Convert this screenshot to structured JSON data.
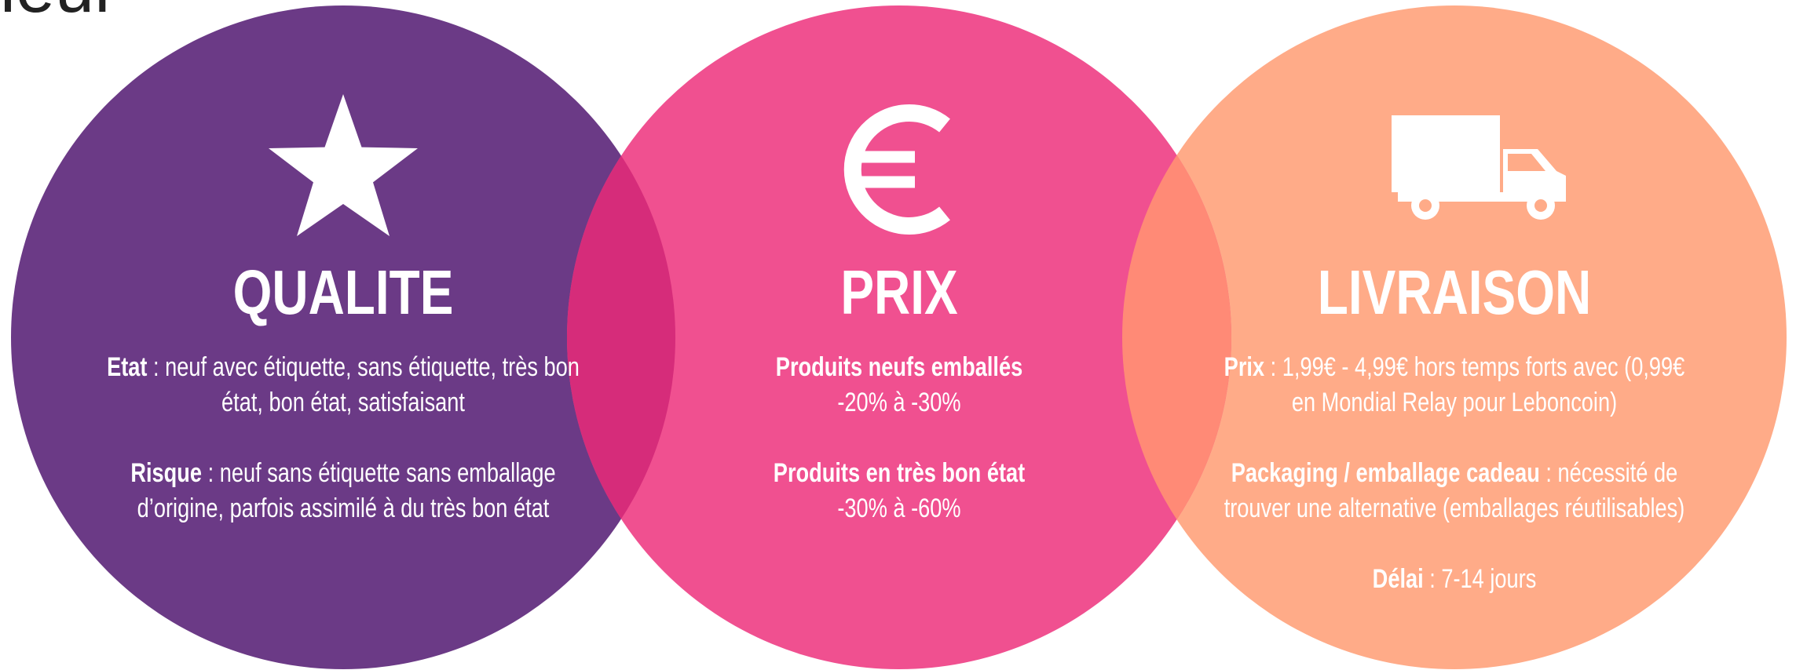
{
  "header": {
    "title": "ieur"
  },
  "circles": [
    {
      "title": "QUALITE",
      "items": [
        {
          "label": "Etat",
          "text": " : neuf avec étiquette, sans étiquette, très bon état, bon état, satisfaisant"
        },
        {
          "label": "Risque",
          "text": " : neuf sans étiquette sans emballage d’origine, parfois assimilé à du très bon état"
        }
      ]
    },
    {
      "title": "PRIX",
      "items": [
        {
          "heading": "Produits neufs emballés",
          "detail": "-20% à -30%"
        },
        {
          "heading": "Produits en très bon état",
          "detail": "-30% à -60%"
        }
      ]
    },
    {
      "title": "LIVRAISON",
      "items": [
        {
          "label": "Prix",
          "text": " : 1,99€ - 4,99€ hors temps forts avec (0,99€ en Mondial Relay pour Leboncoin)"
        },
        {
          "label": "Packaging / emballage cadeau",
          "text": " : nécessité de trouver une alternative (emballages réutilisables)"
        },
        {
          "label": "Délai",
          "text": " : 7-14 jours"
        }
      ]
    }
  ]
}
